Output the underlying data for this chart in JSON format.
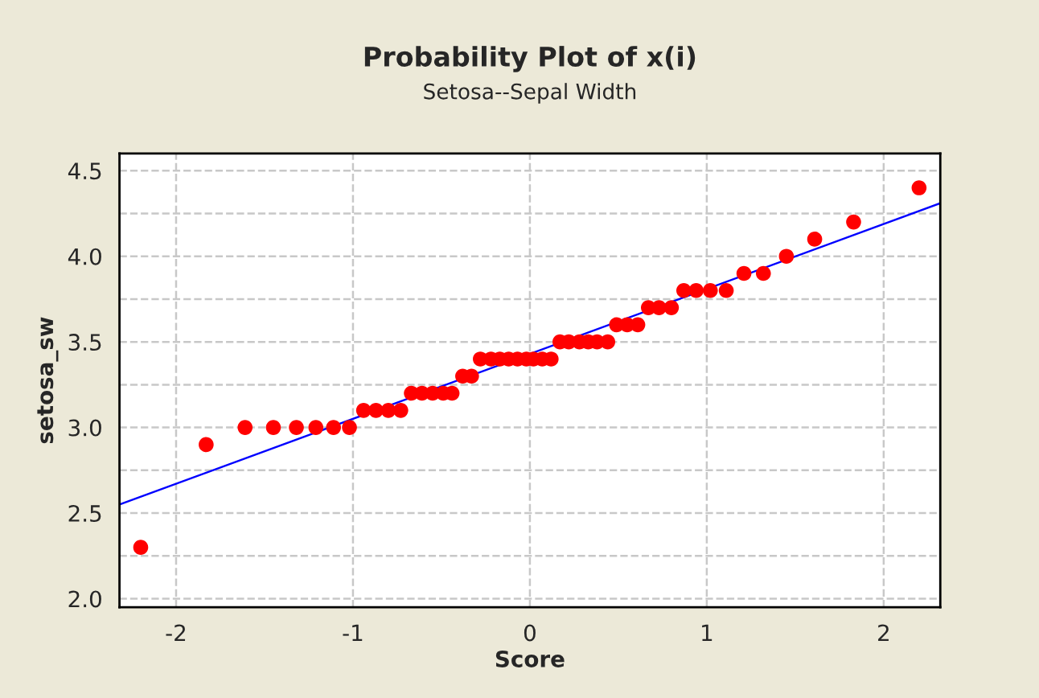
{
  "chart_data": {
    "type": "scatter",
    "title": "Probability Plot of x(i)",
    "subtitle": "Setosa--Sepal Width",
    "xlabel": "Score",
    "ylabel": "setosa_sw",
    "series": [
      {
        "color": "#ff0000",
        "marker": "circle",
        "x": [
          -2.2,
          -1.83,
          -1.61,
          -1.45,
          -1.32,
          -1.21,
          -1.11,
          -1.02,
          -0.94,
          -0.87,
          -0.8,
          -0.73,
          -0.67,
          -0.61,
          -0.55,
          -0.49,
          -0.44,
          -0.38,
          -0.33,
          -0.28,
          -0.22,
          -0.17,
          -0.12,
          -0.07,
          -0.02,
          0.02,
          0.07,
          0.12,
          0.17,
          0.22,
          0.28,
          0.33,
          0.38,
          0.44,
          0.49,
          0.55,
          0.61,
          0.67,
          0.73,
          0.8,
          0.87,
          0.94,
          1.02,
          1.11,
          1.21,
          1.32,
          1.45,
          1.61,
          1.83,
          2.2
        ],
        "values": [
          2.3,
          2.9,
          3.0,
          3.0,
          3.0,
          3.0,
          3.0,
          3.0,
          3.1,
          3.1,
          3.1,
          3.1,
          3.2,
          3.2,
          3.2,
          3.2,
          3.2,
          3.3,
          3.3,
          3.4,
          3.4,
          3.4,
          3.4,
          3.4,
          3.4,
          3.4,
          3.4,
          3.4,
          3.5,
          3.5,
          3.5,
          3.5,
          3.5,
          3.5,
          3.6,
          3.6,
          3.6,
          3.7,
          3.7,
          3.7,
          3.8,
          3.8,
          3.8,
          3.8,
          3.9,
          3.9,
          4.0,
          4.1,
          4.2,
          4.4
        ]
      },
      {
        "type": "line",
        "color": "#0000ff",
        "line_style": "solid",
        "x": [
          -2.32,
          2.32
        ],
        "values": [
          2.55,
          4.31
        ]
      }
    ],
    "xlim": [
      -2.32,
      2.32
    ],
    "xticks": [
      -2,
      -1,
      0,
      1,
      2
    ],
    "ylim": [
      1.95,
      4.6
    ],
    "yticks": [
      {
        "value": 2,
        "label": "2.0"
      },
      {
        "value": 2.25,
        "label": null
      },
      2.5,
      {
        "value": 2.75,
        "label": null
      },
      {
        "value": 3,
        "label": "3.0"
      },
      {
        "value": 3.25,
        "label": null
      },
      3.5,
      {
        "value": 3.75,
        "label": null
      },
      {
        "value": 4,
        "label": "4.0"
      },
      {
        "value": 4.25,
        "label": null
      },
      4.5
    ],
    "grid": true
  }
}
